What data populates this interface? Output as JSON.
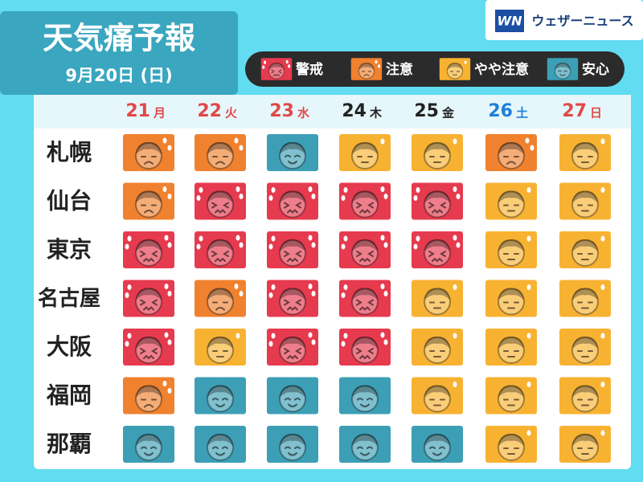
{
  "header": {
    "title": "天気痛予報",
    "date": "9月20日 (日)"
  },
  "brand": {
    "logo": "WN",
    "name": "ウェザーニュース"
  },
  "legend": [
    {
      "label": "警戒",
      "color": "#e63a4e"
    },
    {
      "label": "注意",
      "color": "#f0812e"
    },
    {
      "label": "やや注意",
      "color": "#f8b232"
    },
    {
      "label": "安心",
      "color": "#3c9fb6"
    }
  ],
  "table": {
    "columns": [
      {
        "day": "21",
        "weekday": "月",
        "color": "#e04848"
      },
      {
        "day": "22",
        "weekday": "火",
        "color": "#e04848"
      },
      {
        "day": "23",
        "weekday": "水",
        "color": "#e04848"
      },
      {
        "day": "24",
        "weekday": "木",
        "color": "#222222"
      },
      {
        "day": "25",
        "weekday": "金",
        "color": "#222222"
      },
      {
        "day": "26",
        "weekday": "土",
        "color": "#1e7fd8"
      },
      {
        "day": "27",
        "weekday": "日",
        "color": "#e04848"
      }
    ],
    "rows": [
      {
        "city": "札幌",
        "levels": [
          "#f0812e",
          "#f0812e",
          "#3c9fb6",
          "#f8b232",
          "#f8b232",
          "#f0812e",
          "#f8b232"
        ]
      },
      {
        "city": "仙台",
        "levels": [
          "#f0812e",
          "#e63a4e",
          "#e63a4e",
          "#e63a4e",
          "#e63a4e",
          "#f8b232",
          "#f8b232"
        ]
      },
      {
        "city": "東京",
        "levels": [
          "#e63a4e",
          "#e63a4e",
          "#e63a4e",
          "#e63a4e",
          "#e63a4e",
          "#f8b232",
          "#f8b232"
        ]
      },
      {
        "city": "名古屋",
        "levels": [
          "#e63a4e",
          "#f0812e",
          "#e63a4e",
          "#e63a4e",
          "#f8b232",
          "#f8b232",
          "#f8b232"
        ]
      },
      {
        "city": "大阪",
        "levels": [
          "#e63a4e",
          "#f8b232",
          "#e63a4e",
          "#e63a4e",
          "#f8b232",
          "#f8b232",
          "#f8b232"
        ]
      },
      {
        "city": "福岡",
        "levels": [
          "#f0812e",
          "#3c9fb6",
          "#3c9fb6",
          "#3c9fb6",
          "#f8b232",
          "#f8b232",
          "#f8b232"
        ]
      },
      {
        "city": "那覇",
        "levels": [
          "#3c9fb6",
          "#3c9fb6",
          "#3c9fb6",
          "#3c9fb6",
          "#3c9fb6",
          "#f8b232",
          "#f8b232"
        ]
      }
    ]
  }
}
